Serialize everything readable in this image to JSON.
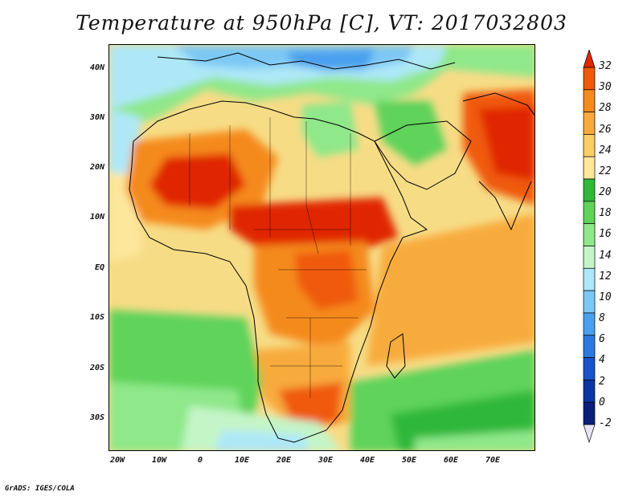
{
  "title": "Temperature at 950hPa [C], VT: 2017032803",
  "credit": "GrADS: IGES/COLA",
  "map": {
    "lat_range": [
      -37,
      45
    ],
    "lon_range": [
      -22,
      80
    ],
    "lat_ticks": [
      "40N",
      "30N",
      "20N",
      "10N",
      "EQ",
      "10S",
      "20S",
      "30S"
    ],
    "lon_ticks": [
      "20W",
      "10W",
      "0",
      "10E",
      "20E",
      "30E",
      "40E",
      "50E",
      "60E",
      "70E"
    ]
  },
  "colorbar": {
    "labels": [
      "32",
      "30",
      "28",
      "26",
      "24",
      "22",
      "20",
      "18",
      "16",
      "14",
      "12",
      "10",
      "8",
      "6",
      "4",
      "2",
      "0",
      "-2"
    ],
    "colors": [
      "#e02800",
      "#f05a0a",
      "#f58a1e",
      "#f8ab3c",
      "#fbcd66",
      "#fde79c",
      "#2fb83a",
      "#5fd35a",
      "#8fe88a",
      "#c4f5c8",
      "#aee8f8",
      "#7cc8f5",
      "#4aa0ee",
      "#2d79de",
      "#1a54c8",
      "#0d35a3",
      "#0a1f7a",
      "#e8e6f5"
    ]
  }
}
